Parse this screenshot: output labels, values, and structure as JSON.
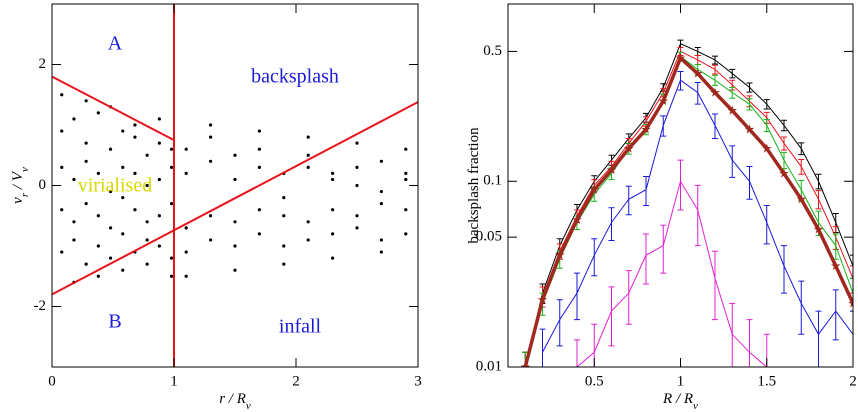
{
  "chart_data": [
    {
      "type": "scatter",
      "xlabel": [
        "r / R",
        "v"
      ],
      "ylabel": [
        "v",
        "r",
        " / V",
        "v"
      ],
      "xlim": [
        0,
        3
      ],
      "ylim": [
        -3,
        3
      ],
      "xticks": [
        0,
        1,
        2,
        3
      ],
      "yticks": [
        -2,
        0,
        2
      ],
      "color": "#000000",
      "x": [
        0.08,
        0.18,
        0.28,
        0.38,
        0.48,
        0.58,
        0.68,
        0.78,
        0.88,
        0.98,
        0.08,
        0.18,
        0.28,
        0.38,
        0.48,
        0.58,
        0.68,
        0.78,
        0.88,
        0.98,
        0.08,
        0.18,
        0.28,
        0.38,
        0.48,
        0.58,
        0.68,
        0.78,
        0.88,
        0.98,
        0.08,
        0.18,
        0.28,
        0.38,
        0.48,
        0.58,
        0.68,
        0.78,
        0.88,
        0.98,
        0.08,
        0.18,
        0.28,
        0.38,
        0.48,
        0.58,
        0.68,
        0.78,
        0.88,
        0.98,
        1.1,
        1.3,
        1.5,
        1.7,
        1.9,
        2.1,
        2.3,
        2.5,
        2.7,
        2.9,
        1.1,
        1.3,
        1.5,
        1.7,
        1.9,
        2.1,
        2.3,
        2.5,
        2.7,
        2.9,
        1.1,
        1.3,
        1.5,
        1.7,
        1.9,
        2.1,
        2.3,
        2.5,
        2.7,
        2.9,
        1.1,
        1.3,
        1.5,
        1.7,
        1.9,
        2.1,
        2.3,
        2.5,
        2.7,
        2.9,
        1.1,
        1.3,
        1.5,
        1.7,
        1.9,
        2.1,
        2.3,
        2.5,
        2.7,
        2.9
      ],
      "y": [
        0.9,
        1.1,
        0.7,
        1.2,
        0.6,
        0.9,
        0.8,
        0.5,
        0.7,
        0.6,
        0.3,
        0.1,
        0.4,
        0.2,
        -0.1,
        0.3,
        0.2,
        0.0,
        0.1,
        0.3,
        -0.4,
        -0.6,
        -0.3,
        -0.5,
        -0.7,
        -0.2,
        -0.4,
        -0.6,
        -0.5,
        -0.3,
        -1.1,
        -0.9,
        -1.3,
        -1.0,
        -1.2,
        -0.8,
        -1.1,
        -0.9,
        -1.0,
        -1.2,
        1.5,
        -1.6,
        1.4,
        -1.5,
        1.3,
        -1.4,
        1.0,
        -1.3,
        1.1,
        -1.5,
        -0.7,
        -0.5,
        -0.6,
        -0.4,
        -0.5,
        -0.6,
        -0.4,
        -0.5,
        -0.3,
        -0.4,
        -1.1,
        -0.9,
        -1.0,
        -0.8,
        -1.0,
        -0.9,
        -0.8,
        -0.7,
        -0.9,
        -0.8,
        0.6,
        0.4,
        0.5,
        0.3,
        0.2,
        0.3,
        0.1,
        0.0,
        -0.1,
        0.1,
        0.2,
        0.8,
        0.1,
        0.6,
        -0.2,
        0.5,
        0.2,
        0.3,
        0.4,
        0.2,
        -1.5,
        1.0,
        -1.4,
        0.9,
        -1.3,
        0.8,
        -1.2,
        0.7,
        -1.1,
        0.6
      ],
      "lines": [
        {
          "color": "#e8141c",
          "x": [
            1,
            1
          ],
          "y": [
            -3,
            3
          ]
        },
        {
          "color": "#e8141c",
          "x": [
            0,
            1
          ],
          "y": [
            1.8,
            0.75
          ]
        },
        {
          "color": "#e8141c",
          "x": [
            0,
            3
          ],
          "y": [
            -1.8,
            1.38
          ]
        }
      ],
      "annotations": [
        {
          "text": "A",
          "color": "#1a1adc"
        },
        {
          "text": "backsplash",
          "color": "#1a1adc"
        },
        {
          "text": "virialised",
          "color": "#d8d800"
        },
        {
          "text": "B",
          "color": "#1a1adc"
        },
        {
          "text": "infall",
          "color": "#1a1adc"
        }
      ]
    },
    {
      "type": "line",
      "log_y": true,
      "xlabel": [
        "R / R",
        "v"
      ],
      "ylabel": [
        "backsplash fraction"
      ],
      "xlim": [
        0,
        2
      ],
      "ylim": [
        0.01,
        0.9
      ],
      "xticks": [
        0.5,
        1,
        1.5,
        2
      ],
      "yticks": [
        0.01,
        0.05,
        0.1,
        0.5
      ],
      "x": [
        0.1,
        0.2,
        0.3,
        0.4,
        0.5,
        0.6,
        0.7,
        0.8,
        0.9,
        1.0,
        1.1,
        1.2,
        1.3,
        1.4,
        1.5,
        1.6,
        1.7,
        1.8,
        1.9,
        2.0
      ],
      "series": [
        {
          "color": "#000000",
          "linewidth": 1,
          "values": [
            0.01,
            0.025,
            0.045,
            0.07,
            0.1,
            0.13,
            0.17,
            0.22,
            0.32,
            0.55,
            0.5,
            0.45,
            0.38,
            0.32,
            0.26,
            0.2,
            0.15,
            0.1,
            0.06,
            0.035
          ],
          "errors": [
            0.002,
            0.003,
            0.004,
            0.005,
            0.007,
            0.008,
            0.01,
            0.012,
            0.015,
            0.025,
            0.025,
            0.022,
            0.02,
            0.018,
            0.015,
            0.013,
            0.011,
            0.009,
            0.007,
            0.005
          ]
        },
        {
          "color": "#e8141c",
          "linewidth": 1,
          "values": [
            0.01,
            0.024,
            0.042,
            0.065,
            0.095,
            0.12,
            0.16,
            0.21,
            0.3,
            0.5,
            0.45,
            0.4,
            0.33,
            0.27,
            0.22,
            0.16,
            0.12,
            0.08,
            0.05,
            0.03
          ],
          "errors": [
            0.002,
            0.003,
            0.004,
            0.005,
            0.007,
            0.008,
            0.01,
            0.012,
            0.015,
            0.025,
            0.025,
            0.022,
            0.02,
            0.018,
            0.015,
            0.013,
            0.011,
            0.009,
            0.007,
            0.005
          ]
        },
        {
          "color": "#18b418",
          "linewidth": 1,
          "values": [
            0.01,
            0.022,
            0.038,
            0.06,
            0.085,
            0.11,
            0.15,
            0.19,
            0.28,
            0.47,
            0.4,
            0.35,
            0.3,
            0.26,
            0.2,
            0.13,
            0.09,
            0.06,
            0.045,
            0.025
          ],
          "errors": [
            0.002,
            0.003,
            0.004,
            0.005,
            0.007,
            0.008,
            0.01,
            0.012,
            0.015,
            0.025,
            0.025,
            0.022,
            0.02,
            0.018,
            0.015,
            0.013,
            0.011,
            0.009,
            0.007,
            0.005
          ]
        },
        {
          "color": "#1a1adc",
          "linewidth": 1,
          "values": [
            null,
            0.012,
            0.018,
            0.025,
            0.04,
            0.06,
            0.08,
            0.09,
            0.2,
            0.35,
            0.3,
            0.2,
            0.13,
            0.1,
            0.06,
            0.035,
            0.022,
            0.015,
            0.02,
            0.015
          ],
          "errors": [
            null,
            0.004,
            0.005,
            0.007,
            0.009,
            0.012,
            0.014,
            0.016,
            0.025,
            0.04,
            0.04,
            0.03,
            0.025,
            0.02,
            0.014,
            0.01,
            0.007,
            0.005,
            0.006,
            0.005
          ]
        },
        {
          "color": "#e020d0",
          "linewidth": 1,
          "values": [
            null,
            null,
            null,
            0.01,
            0.012,
            0.02,
            0.025,
            0.04,
            0.045,
            0.1,
            0.07,
            0.03,
            0.015,
            0.012,
            0.01,
            null,
            null,
            null,
            null,
            null
          ],
          "errors": [
            null,
            null,
            null,
            0.004,
            0.005,
            0.007,
            0.008,
            0.012,
            0.013,
            0.03,
            0.025,
            0.012,
            0.007,
            0.006,
            0.005,
            null,
            null,
            null,
            null,
            null
          ]
        },
        {
          "color": "#a0281e",
          "linewidth": 3.5,
          "marker": "star",
          "values": [
            0.01,
            0.023,
            0.04,
            0.062,
            0.09,
            0.115,
            0.15,
            0.19,
            0.27,
            0.46,
            0.38,
            0.3,
            0.24,
            0.19,
            0.15,
            0.11,
            0.08,
            0.055,
            0.035,
            0.022
          ]
        }
      ]
    }
  ]
}
